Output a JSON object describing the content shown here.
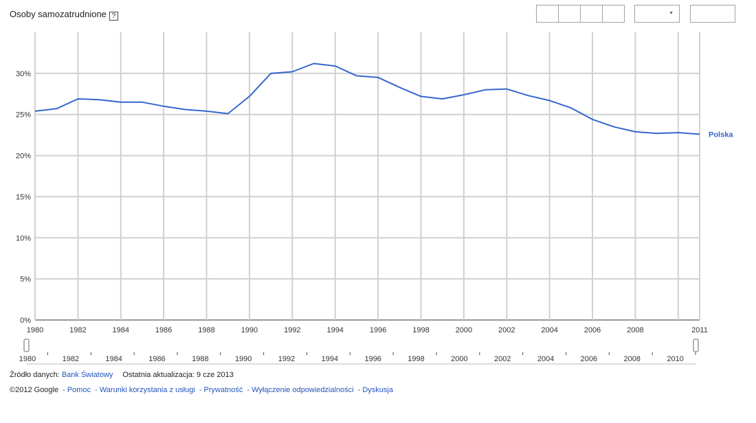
{
  "header": {
    "title": "Osoby samozatrudnione",
    "help_label": "?"
  },
  "chart_data": {
    "type": "line",
    "x": [
      1980,
      1981,
      1982,
      1983,
      1984,
      1985,
      1986,
      1987,
      1988,
      1989,
      1990,
      1991,
      1992,
      1993,
      1994,
      1995,
      1996,
      1997,
      1998,
      1999,
      2000,
      2001,
      2002,
      2003,
      2004,
      2005,
      2006,
      2007,
      2008,
      2009,
      2010,
      2011
    ],
    "series": [
      {
        "name": "Polska",
        "color": "#3366cc",
        "values": [
          25.4,
          25.7,
          26.9,
          26.8,
          26.5,
          26.5,
          26.0,
          25.6,
          25.4,
          25.1,
          27.2,
          30.0,
          30.2,
          31.2,
          30.9,
          29.7,
          29.5,
          28.3,
          27.2,
          26.9,
          27.4,
          28.0,
          28.1,
          27.3,
          26.7,
          25.8,
          24.4,
          23.5,
          22.9,
          22.7,
          22.8,
          22.6
        ]
      }
    ],
    "xlim": [
      1980,
      2011
    ],
    "ylim": [
      0,
      35
    ],
    "y_ticks": [
      0,
      5,
      10,
      15,
      20,
      25,
      30
    ],
    "y_tick_labels": [
      "0%",
      "5%",
      "10%",
      "15%",
      "20%",
      "25%",
      "30%"
    ],
    "x_tick_labels": [
      "1980",
      "1982",
      "1984",
      "1986",
      "1988",
      "1990",
      "1992",
      "1994",
      "1996",
      "1998",
      "2000",
      "2002",
      "2004",
      "2006",
      "2008",
      "2011"
    ],
    "x_tick_values": [
      1980,
      1982,
      1984,
      1986,
      1988,
      1990,
      1992,
      1994,
      1996,
      1998,
      2000,
      2002,
      2004,
      2006,
      2008,
      2011
    ],
    "grid": true,
    "legend": "end-of-line"
  },
  "timeline": {
    "labels": [
      "1980",
      "1982",
      "1984",
      "1986",
      "1988",
      "1990",
      "1992",
      "1994",
      "1996",
      "1998",
      "2000",
      "2002",
      "2004",
      "2006",
      "2008",
      "2010"
    ],
    "values": [
      1980,
      1982,
      1984,
      1986,
      1988,
      1990,
      1992,
      1994,
      1996,
      1998,
      2000,
      2002,
      2004,
      2006,
      2008,
      2010
    ],
    "range_start": 1980,
    "range_end": 2011
  },
  "footer": {
    "source_label": "Źródło danych:",
    "source_link": "Bank Światowy",
    "updated_label": "Ostatnia aktualizacja: 9 cze 2013",
    "copyright": "©2012 Google",
    "links": [
      "Pomoc",
      "Warunki korzystania z usługi",
      "Prywatność",
      "Wyłączenie odpowiedzialności",
      "Dyskusja"
    ],
    "link_separator": "-"
  }
}
